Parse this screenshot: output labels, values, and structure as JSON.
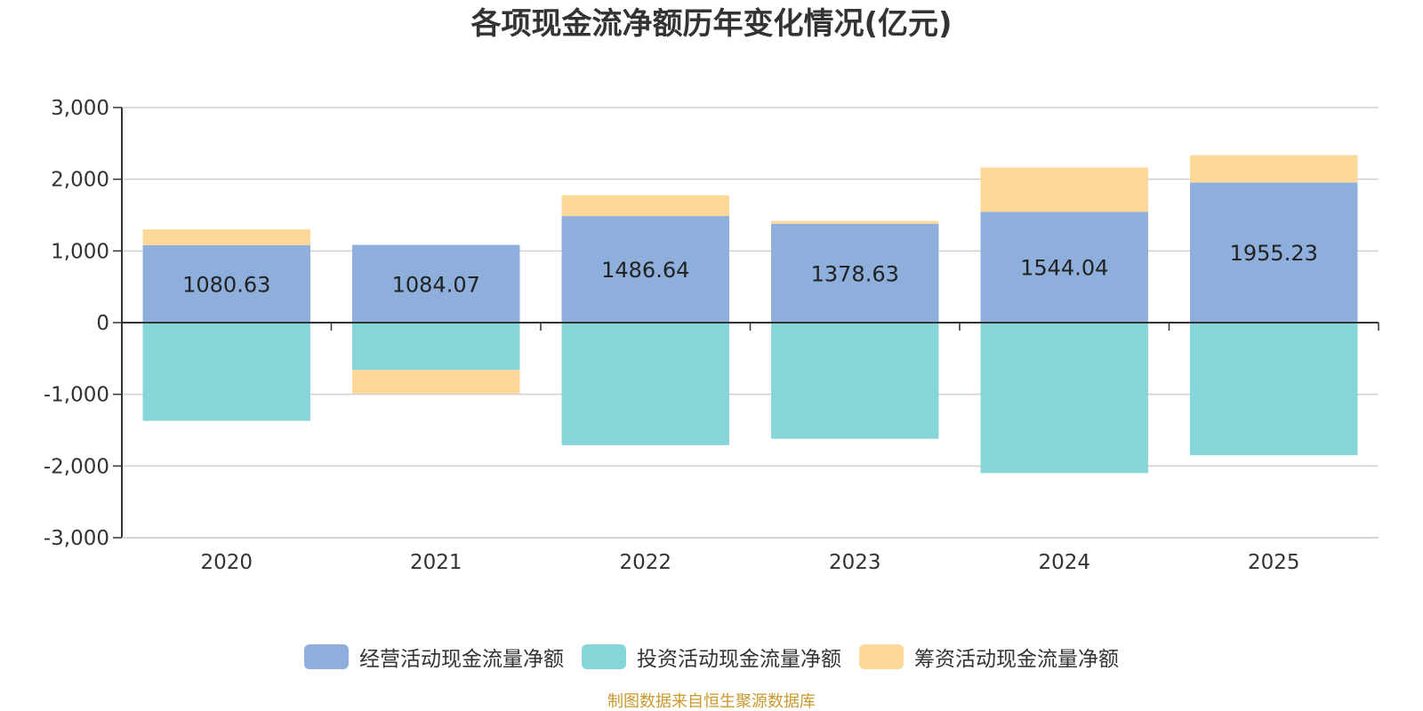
{
  "chart_data": {
    "type": "bar",
    "stacked": true,
    "title": "各项现金流净额历年变化情况(亿元)",
    "categories": [
      "2020",
      "2021",
      "2022",
      "2023",
      "2024",
      "2025"
    ],
    "series": [
      {
        "name": "经营活动现金流量净额",
        "color": "#8eaedb",
        "values": [
          1080.63,
          1084.07,
          1486.64,
          1378.63,
          1544.04,
          1955.23
        ]
      },
      {
        "name": "投资活动现金流量净额",
        "color": "#86d5d8",
        "values": [
          -1370,
          -660,
          -1710,
          -1620,
          -2100,
          -1850
        ]
      },
      {
        "name": "筹资活动现金流量净额",
        "color": "#fdd898",
        "values": [
          220,
          -330,
          290,
          40,
          620,
          380
        ]
      }
    ],
    "data_labels_series": "经营活动现金流量净额",
    "data_labels": [
      "1080.63",
      "1084.07",
      "1486.64",
      "1378.63",
      "1544.04",
      "1955.23"
    ],
    "ylim": [
      -3000,
      3000
    ],
    "yticks": [
      3000,
      2000,
      1000,
      0,
      -1000,
      -2000,
      -3000
    ],
    "ytick_labels": [
      "3,000",
      "2,000",
      "1,000",
      "0",
      "-1,000",
      "-2,000",
      "-3,000"
    ],
    "grid": true,
    "legend_position": "bottom",
    "source_note": "制图数据来自恒生聚源数据库"
  }
}
